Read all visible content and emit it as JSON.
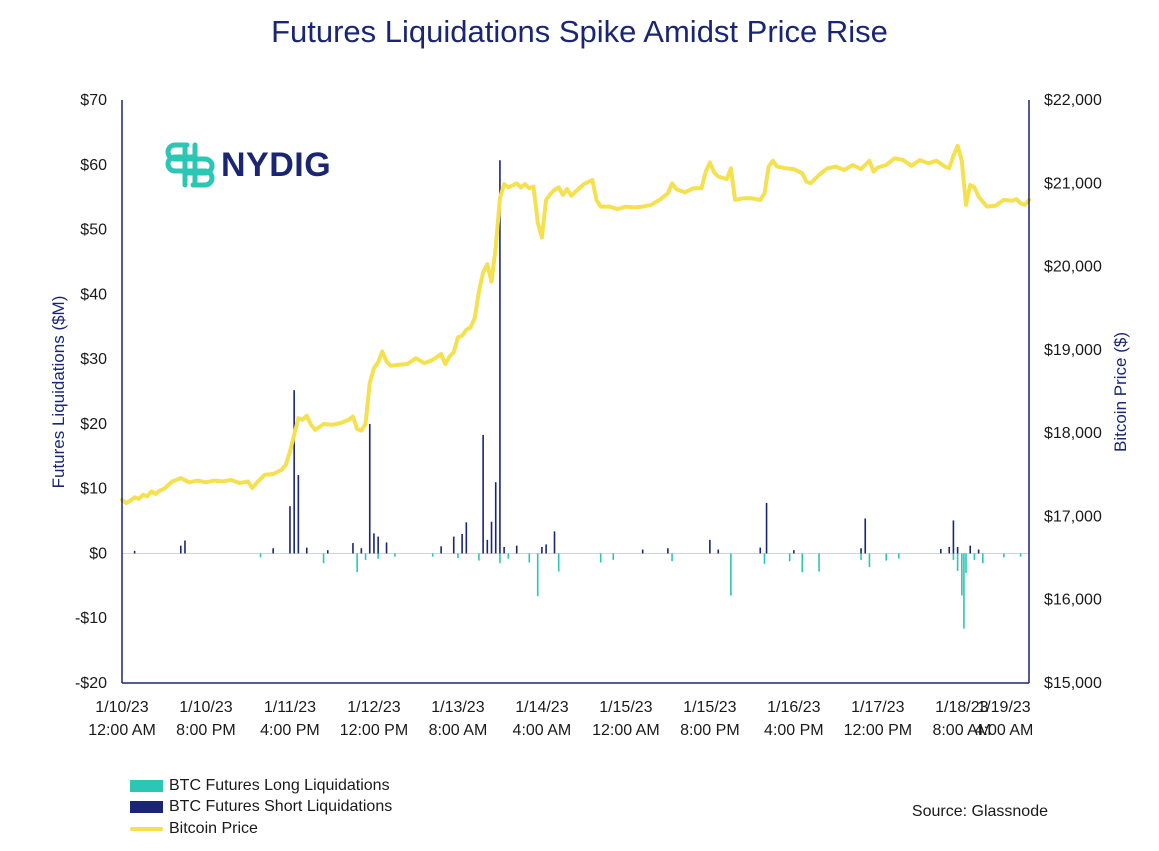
{
  "colors": {
    "long": "#2bc7b4",
    "short": "#1a2674",
    "price": "#f5e14f",
    "axis": "#1a2674"
  },
  "logo": {
    "text": "NYDIG",
    "icon": "nydig-logo-icon"
  },
  "source": "Source: Glassnode",
  "chart_data": {
    "type": "bar+line",
    "title": "Futures Liquidations Spike Amidst Price Rise",
    "ylabel_left": "Futures Liquidations ($M)",
    "ylabel_right": "Bitcoin Price ($)",
    "ylim_left": [
      -20,
      70
    ],
    "ylim_right": [
      15000,
      22000
    ],
    "xlim_hours": [
      0,
      216
    ],
    "left_ticks": [
      {
        "value": 70,
        "label": "$70"
      },
      {
        "value": 60,
        "label": "$60"
      },
      {
        "value": 50,
        "label": "$50"
      },
      {
        "value": 40,
        "label": "$40"
      },
      {
        "value": 30,
        "label": "$30"
      },
      {
        "value": 20,
        "label": "$20"
      },
      {
        "value": 10,
        "label": "$10"
      },
      {
        "value": 0,
        "label": "$0"
      },
      {
        "value": -10,
        "label": "-$10"
      },
      {
        "value": -20,
        "label": "-$20"
      }
    ],
    "right_ticks": [
      {
        "value": 22000,
        "label": "$22,000"
      },
      {
        "value": 21000,
        "label": "$21,000"
      },
      {
        "value": 20000,
        "label": "$20,000"
      },
      {
        "value": 19000,
        "label": "$19,000"
      },
      {
        "value": 18000,
        "label": "$18,000"
      },
      {
        "value": 17000,
        "label": "$17,000"
      },
      {
        "value": 16000,
        "label": "$16,000"
      },
      {
        "value": 15000,
        "label": "$15,000"
      }
    ],
    "x_ticks": [
      {
        "hour": 0,
        "line1": "1/10/23",
        "line2": "12:00 AM"
      },
      {
        "hour": 20,
        "line1": "1/10/23",
        "line2": "8:00 PM"
      },
      {
        "hour": 40,
        "line1": "1/11/23",
        "line2": "4:00 PM"
      },
      {
        "hour": 60,
        "line1": "1/12/23",
        "line2": "12:00 PM"
      },
      {
        "hour": 80,
        "line1": "1/13/23",
        "line2": "8:00 AM"
      },
      {
        "hour": 100,
        "line1": "1/14/23",
        "line2": "4:00 AM"
      },
      {
        "hour": 120,
        "line1": "1/15/23",
        "line2": "12:00 AM"
      },
      {
        "hour": 140,
        "line1": "1/15/23",
        "line2": "8:00 PM"
      },
      {
        "hour": 160,
        "line1": "1/16/23",
        "line2": "4:00 PM"
      },
      {
        "hour": 180,
        "line1": "1/17/23",
        "line2": "12:00 PM"
      },
      {
        "hour": 200,
        "line1": "1/18/23",
        "line2": "8:00 AM"
      },
      {
        "hour": 220,
        "line1": "1/19/23",
        "line2": "4:00 AM"
      }
    ],
    "series": [
      {
        "name": "BTC Futures Long Liquidations",
        "type": "bar",
        "points": [
          [
            33,
            -0.6
          ],
          [
            48,
            -1.5
          ],
          [
            56,
            -2.9
          ],
          [
            58,
            -1.0
          ],
          [
            61,
            -0.8
          ],
          [
            65,
            -0.5
          ],
          [
            74,
            -0.5
          ],
          [
            80,
            -0.7
          ],
          [
            85,
            -1.1
          ],
          [
            90,
            -1.5
          ],
          [
            92,
            -0.8
          ],
          [
            97,
            -1.4
          ],
          [
            99,
            -6.6
          ],
          [
            104,
            -2.8
          ],
          [
            114,
            -1.4
          ],
          [
            117,
            -1.0
          ],
          [
            131,
            -1.2
          ],
          [
            145,
            -6.5
          ],
          [
            153,
            -1.6
          ],
          [
            159,
            -1.2
          ],
          [
            162,
            -2.9
          ],
          [
            166,
            -2.8
          ],
          [
            176,
            -1.0
          ],
          [
            178,
            -2.1
          ],
          [
            182,
            -1.1
          ],
          [
            185,
            -0.8
          ],
          [
            198,
            -1.0
          ],
          [
            199,
            -2.7
          ],
          [
            200,
            -6.5
          ],
          [
            200.5,
            -11.6
          ],
          [
            201,
            -3.0
          ],
          [
            203,
            -1.0
          ],
          [
            205,
            -1.5
          ],
          [
            210,
            -0.6
          ],
          [
            214,
            -0.5
          ]
        ]
      },
      {
        "name": "BTC Futures Short Liquidations",
        "type": "bar",
        "points": [
          [
            3,
            0.4
          ],
          [
            14,
            1.2
          ],
          [
            15,
            2.0
          ],
          [
            36,
            0.8
          ],
          [
            40,
            7.3
          ],
          [
            41,
            25.2
          ],
          [
            42,
            12.1
          ],
          [
            44,
            0.9
          ],
          [
            49,
            0.5
          ],
          [
            55,
            1.6
          ],
          [
            57,
            0.8
          ],
          [
            59,
            20.0
          ],
          [
            60,
            3.1
          ],
          [
            61,
            2.6
          ],
          [
            63,
            1.7
          ],
          [
            76,
            1.1
          ],
          [
            79,
            2.6
          ],
          [
            81,
            3.0
          ],
          [
            82,
            4.8
          ],
          [
            86,
            18.3
          ],
          [
            87,
            2.1
          ],
          [
            88,
            4.9
          ],
          [
            89,
            11.0
          ],
          [
            90,
            60.7
          ],
          [
            91,
            1.0
          ],
          [
            94,
            1.2
          ],
          [
            100,
            1.0
          ],
          [
            101,
            1.4
          ],
          [
            103,
            3.4
          ],
          [
            124,
            0.6
          ],
          [
            130,
            0.8
          ],
          [
            140,
            2.1
          ],
          [
            142,
            0.6
          ],
          [
            152,
            0.9
          ],
          [
            153.5,
            7.8
          ],
          [
            160,
            0.5
          ],
          [
            176,
            0.8
          ],
          [
            177,
            5.4
          ],
          [
            195,
            0.7
          ],
          [
            197,
            1.0
          ],
          [
            198,
            5.1
          ],
          [
            199,
            1.0
          ],
          [
            202,
            1.2
          ],
          [
            204,
            0.6
          ]
        ]
      },
      {
        "name": "Bitcoin Price",
        "type": "line",
        "points": [
          [
            0,
            17200
          ],
          [
            1,
            17160
          ],
          [
            2,
            17190
          ],
          [
            3,
            17230
          ],
          [
            4,
            17210
          ],
          [
            5,
            17260
          ],
          [
            6,
            17240
          ],
          [
            7,
            17300
          ],
          [
            8,
            17270
          ],
          [
            9,
            17310
          ],
          [
            10,
            17330
          ],
          [
            12,
            17420
          ],
          [
            13,
            17440
          ],
          [
            14,
            17460
          ],
          [
            16,
            17410
          ],
          [
            18,
            17430
          ],
          [
            20,
            17410
          ],
          [
            22,
            17430
          ],
          [
            24,
            17420
          ],
          [
            26,
            17440
          ],
          [
            28,
            17400
          ],
          [
            30,
            17420
          ],
          [
            31,
            17340
          ],
          [
            32,
            17400
          ],
          [
            34,
            17500
          ],
          [
            36,
            17510
          ],
          [
            38,
            17560
          ],
          [
            39,
            17620
          ],
          [
            40,
            17780
          ],
          [
            41,
            17980
          ],
          [
            42,
            18180
          ],
          [
            43,
            18160
          ],
          [
            44,
            18210
          ],
          [
            45,
            18100
          ],
          [
            46,
            18040
          ],
          [
            48,
            18110
          ],
          [
            50,
            18100
          ],
          [
            52,
            18120
          ],
          [
            54,
            18160
          ],
          [
            55,
            18200
          ],
          [
            56,
            18050
          ],
          [
            57,
            18030
          ],
          [
            58,
            18110
          ],
          [
            59,
            18600
          ],
          [
            60,
            18780
          ],
          [
            61,
            18850
          ],
          [
            62,
            18980
          ],
          [
            63,
            18860
          ],
          [
            64,
            18810
          ],
          [
            66,
            18820
          ],
          [
            68,
            18830
          ],
          [
            70,
            18900
          ],
          [
            72,
            18840
          ],
          [
            74,
            18880
          ],
          [
            76,
            18950
          ],
          [
            77,
            18830
          ],
          [
            78,
            18920
          ],
          [
            79,
            18970
          ],
          [
            80,
            19150
          ],
          [
            81,
            19170
          ],
          [
            82,
            19240
          ],
          [
            83,
            19270
          ],
          [
            84,
            19380
          ],
          [
            85,
            19700
          ],
          [
            86,
            19930
          ],
          [
            87,
            20030
          ],
          [
            88,
            19820
          ],
          [
            89,
            20230
          ],
          [
            90,
            20820
          ],
          [
            91,
            20990
          ],
          [
            92,
            20950
          ],
          [
            94,
            21000
          ],
          [
            95,
            20950
          ],
          [
            96,
            20990
          ],
          [
            97,
            20940
          ],
          [
            98,
            20960
          ],
          [
            99,
            20530
          ],
          [
            100,
            20350
          ],
          [
            101,
            20800
          ],
          [
            102,
            20870
          ],
          [
            103,
            20920
          ],
          [
            104,
            20950
          ],
          [
            105,
            20860
          ],
          [
            106,
            20930
          ],
          [
            107,
            20850
          ],
          [
            108,
            20900
          ],
          [
            110,
            20990
          ],
          [
            112,
            21040
          ],
          [
            113,
            20800
          ],
          [
            114,
            20720
          ],
          [
            116,
            20720
          ],
          [
            118,
            20690
          ],
          [
            120,
            20720
          ],
          [
            122,
            20710
          ],
          [
            124,
            20720
          ],
          [
            126,
            20740
          ],
          [
            128,
            20800
          ],
          [
            130,
            20880
          ],
          [
            131,
            21000
          ],
          [
            132,
            20930
          ],
          [
            134,
            20890
          ],
          [
            136,
            20940
          ],
          [
            138,
            20940
          ],
          [
            139,
            21140
          ],
          [
            140,
            21250
          ],
          [
            141,
            21130
          ],
          [
            142,
            21080
          ],
          [
            144,
            21050
          ],
          [
            145,
            21180
          ],
          [
            146,
            20800
          ],
          [
            148,
            20820
          ],
          [
            150,
            20820
          ],
          [
            152,
            20800
          ],
          [
            153,
            20880
          ],
          [
            154,
            21200
          ],
          [
            155,
            21270
          ],
          [
            156,
            21200
          ],
          [
            158,
            21180
          ],
          [
            160,
            21170
          ],
          [
            162,
            21120
          ],
          [
            163,
            21020
          ],
          [
            164,
            21000
          ],
          [
            166,
            21100
          ],
          [
            168,
            21180
          ],
          [
            170,
            21200
          ],
          [
            172,
            21160
          ],
          [
            174,
            21220
          ],
          [
            176,
            21170
          ],
          [
            178,
            21270
          ],
          [
            179,
            21140
          ],
          [
            180,
            21190
          ],
          [
            182,
            21220
          ],
          [
            184,
            21300
          ],
          [
            186,
            21280
          ],
          [
            188,
            21210
          ],
          [
            190,
            21280
          ],
          [
            192,
            21240
          ],
          [
            194,
            21270
          ],
          [
            196,
            21200
          ],
          [
            197,
            21180
          ],
          [
            198,
            21330
          ],
          [
            199,
            21450
          ],
          [
            200,
            21270
          ],
          [
            201,
            20740
          ],
          [
            202,
            20980
          ],
          [
            203,
            20950
          ],
          [
            204,
            20840
          ],
          [
            206,
            20720
          ],
          [
            208,
            20730
          ],
          [
            210,
            20800
          ],
          [
            212,
            20790
          ],
          [
            213,
            20810
          ],
          [
            214,
            20760
          ],
          [
            215,
            20740
          ],
          [
            216,
            20800
          ]
        ]
      }
    ],
    "legend": [
      {
        "label": "BTC Futures Long Liquidations",
        "kind": "swatch",
        "color": "#2bc7b4"
      },
      {
        "label": "BTC Futures Short Liquidations",
        "kind": "swatch",
        "color": "#1a2674"
      },
      {
        "label": "Bitcoin Price",
        "kind": "line",
        "color": "#f5e14f"
      }
    ]
  }
}
